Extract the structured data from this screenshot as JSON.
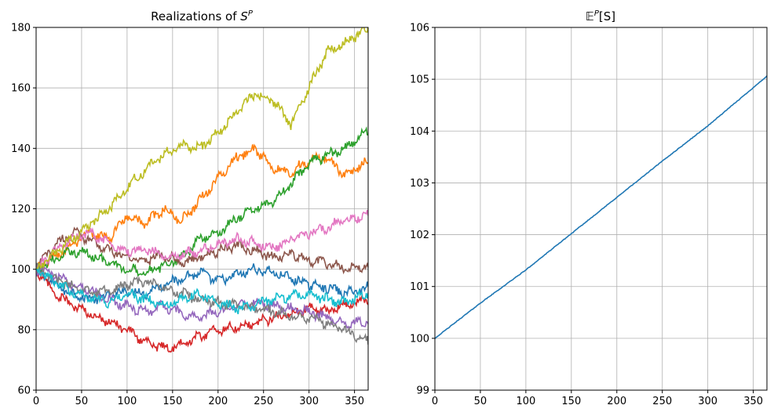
{
  "chart_data": [
    {
      "type": "line",
      "title": "Realizations of S^P",
      "title_main": "Realizations of ",
      "title_var": "S",
      "title_sup": "P",
      "xlim": [
        0,
        365
      ],
      "ylim": [
        60,
        180
      ],
      "xticks": [
        0,
        50,
        100,
        150,
        200,
        250,
        300,
        350
      ],
      "yticks": [
        60,
        80,
        100,
        120,
        140,
        160,
        180
      ],
      "grid": true,
      "series": [
        {
          "color": "#1f77b4",
          "x": [
            0,
            20,
            40,
            60,
            80,
            100,
            120,
            140,
            160,
            180,
            200,
            220,
            240,
            260,
            280,
            300,
            320,
            340,
            365
          ],
          "values": [
            100,
            95,
            92,
            90,
            91,
            93,
            92,
            95,
            97,
            99,
            96,
            98,
            100,
            99,
            97,
            95,
            94,
            92,
            94
          ]
        },
        {
          "color": "#ff7f0e",
          "x": [
            0,
            20,
            40,
            60,
            80,
            100,
            120,
            140,
            160,
            180,
            200,
            220,
            240,
            260,
            280,
            300,
            320,
            340,
            365
          ],
          "values": [
            100,
            104,
            108,
            112,
            110,
            118,
            115,
            120,
            116,
            123,
            130,
            137,
            140,
            134,
            132,
            136,
            137,
            131,
            136
          ]
        },
        {
          "color": "#2ca02c",
          "x": [
            0,
            20,
            40,
            60,
            80,
            100,
            120,
            140,
            160,
            180,
            200,
            220,
            240,
            260,
            280,
            300,
            320,
            340,
            365
          ],
          "values": [
            100,
            103,
            106,
            105,
            102,
            100,
            99,
            101,
            104,
            110,
            112,
            117,
            120,
            122,
            128,
            135,
            138,
            140,
            146
          ]
        },
        {
          "color": "#d62728",
          "x": [
            0,
            20,
            40,
            60,
            80,
            100,
            120,
            140,
            160,
            180,
            200,
            220,
            240,
            260,
            280,
            300,
            320,
            340,
            365
          ],
          "values": [
            100,
            92,
            88,
            85,
            83,
            80,
            76,
            74,
            75,
            78,
            80,
            81,
            82,
            84,
            85,
            87,
            86,
            88,
            90
          ]
        },
        {
          "color": "#9467bd",
          "x": [
            0,
            20,
            40,
            60,
            80,
            100,
            120,
            140,
            160,
            180,
            200,
            220,
            240,
            260,
            280,
            300,
            320,
            340,
            365
          ],
          "values": [
            100,
            98,
            95,
            93,
            90,
            88,
            86,
            88,
            85,
            84,
            86,
            88,
            89,
            88,
            87,
            86,
            84,
            82,
            83
          ]
        },
        {
          "color": "#8c564b",
          "x": [
            0,
            20,
            40,
            60,
            80,
            100,
            120,
            140,
            160,
            180,
            200,
            220,
            240,
            260,
            280,
            300,
            320,
            340,
            365
          ],
          "values": [
            100,
            108,
            112,
            110,
            106,
            104,
            103,
            105,
            102,
            104,
            106,
            108,
            106,
            104,
            105,
            103,
            102,
            100,
            101
          ]
        },
        {
          "color": "#e377c2",
          "x": [
            0,
            20,
            40,
            60,
            80,
            100,
            120,
            140,
            160,
            180,
            200,
            220,
            240,
            260,
            280,
            300,
            320,
            340,
            365
          ],
          "values": [
            100,
            106,
            110,
            112,
            108,
            106,
            107,
            104,
            105,
            106,
            108,
            110,
            109,
            107,
            110,
            112,
            114,
            116,
            118
          ]
        },
        {
          "color": "#7f7f7f",
          "x": [
            0,
            20,
            40,
            60,
            80,
            100,
            120,
            140,
            160,
            180,
            200,
            220,
            240,
            260,
            280,
            300,
            320,
            340,
            365
          ],
          "values": [
            100,
            97,
            94,
            92,
            93,
            95,
            96,
            94,
            92,
            90,
            89,
            88,
            87,
            86,
            85,
            84,
            82,
            80,
            76
          ]
        },
        {
          "color": "#bcbd22",
          "x": [
            0,
            20,
            40,
            60,
            80,
            100,
            120,
            140,
            160,
            180,
            200,
            220,
            240,
            260,
            280,
            300,
            320,
            340,
            365
          ],
          "values": [
            100,
            105,
            110,
            115,
            120,
            127,
            133,
            138,
            141,
            140,
            145,
            152,
            158,
            156,
            148,
            160,
            172,
            175,
            180
          ]
        },
        {
          "color": "#17becf",
          "x": [
            0,
            20,
            40,
            60,
            80,
            100,
            120,
            140,
            160,
            180,
            200,
            220,
            240,
            260,
            280,
            300,
            320,
            340,
            365
          ],
          "values": [
            100,
            96,
            92,
            91,
            89,
            92,
            90,
            88,
            90,
            92,
            89,
            87,
            88,
            90,
            91,
            92,
            90,
            89,
            92
          ]
        }
      ]
    },
    {
      "type": "line",
      "title": "E^P[S]",
      "title_main": "𝔼",
      "title_sup": "P",
      "title_rest": "[S]",
      "xlim": [
        0,
        365
      ],
      "ylim": [
        99,
        106
      ],
      "xticks": [
        0,
        50,
        100,
        150,
        200,
        250,
        300,
        350
      ],
      "yticks": [
        99,
        100,
        101,
        102,
        103,
        104,
        105,
        106
      ],
      "grid": true,
      "series": [
        {
          "color": "#1f77b4",
          "x": [
            0,
            50,
            100,
            150,
            200,
            250,
            300,
            365
          ],
          "values": [
            100.0,
            100.68,
            101.32,
            102.02,
            102.72,
            103.42,
            104.1,
            105.06
          ]
        }
      ]
    }
  ]
}
